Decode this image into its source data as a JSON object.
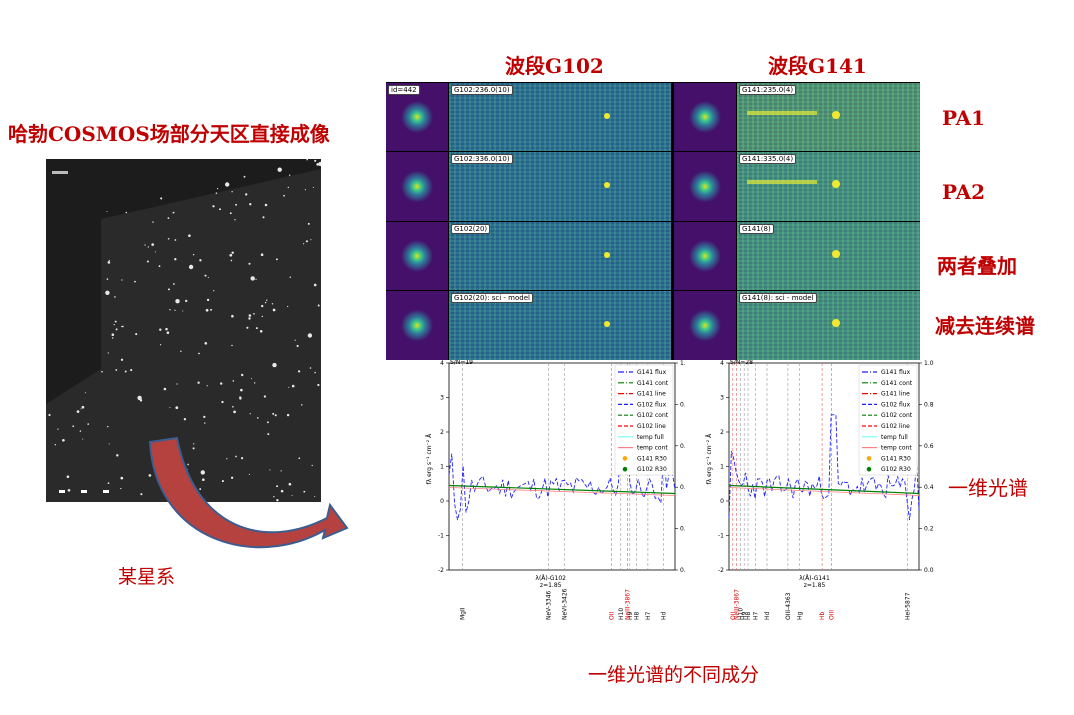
{
  "labels": {
    "left_title": "哈勃COSMOS场部分天区直接成像",
    "g102_header": "波段G102",
    "g141_header": "波段G141",
    "row_pa1": "PA1",
    "row_pa2": "PA2",
    "row_sum": "两者叠加",
    "row_sub": "减去连续谱",
    "spec1d": "一维光谱",
    "galaxy": "某星系",
    "bottom": "一维光谱的不同成分"
  },
  "thumbs": {
    "id_label": "id=442",
    "g102": [
      "G102:236.0(10)",
      "G102:336.0(10)",
      "G102(20)",
      "G102(20): sci - model"
    ],
    "g141": [
      "G141:235.0(4)",
      "G141:335.0(4)",
      "G141(8)",
      "G141(8): sci - model"
    ]
  },
  "plots": {
    "left": {
      "xlabel": "λ(Å)-G102",
      "z": "z=1.85",
      "sn": "S/N=19",
      "ylabel": "fλ erg s⁻¹ cm⁻² Å",
      "yticks": [
        "4",
        "3",
        "2",
        "1",
        "0",
        "-1",
        "-2"
      ],
      "y2ticks": [
        "1.0",
        "0.8",
        "0.6",
        "0.4",
        "0.2",
        "0.0"
      ],
      "lines_black": [
        "MgII",
        "NeV-3346",
        "NeVI-3426",
        "H10",
        "H9",
        "H8",
        "H7",
        "Hd"
      ],
      "lines_red": [
        "OII",
        "NeIII-3867"
      ]
    },
    "right": {
      "xlabel": "λ(Å)-G141",
      "z": "z=1.85",
      "sn": "S/N=28",
      "ylabel": "fλ erg s⁻¹ cm⁻² Å",
      "yticks": [
        "4",
        "3",
        "2",
        "1",
        "0",
        "-1",
        "-2"
      ],
      "y2ticks": [
        "1.0",
        "0.8",
        "0.6",
        "0.4",
        "0.2",
        "0.0"
      ],
      "lines_black": [
        "H10",
        "H9",
        "H8",
        "H7",
        "Hd",
        "OIII-4363",
        "Hg",
        "HeI-5877"
      ],
      "lines_red": [
        "OII",
        "NeIII-3867",
        "Hb",
        "OIII"
      ]
    },
    "legend": [
      {
        "label": "G141 flux",
        "color": "#1f1fff",
        "dash": "6,2,1,2"
      },
      {
        "label": "G141 cont",
        "color": "#008000",
        "dash": "6,2,1,2"
      },
      {
        "label": "G141 line",
        "color": "#ff0000",
        "dash": "6,2,1,2"
      },
      {
        "label": "G102 flux",
        "color": "#1f1fff",
        "dash": "4,2"
      },
      {
        "label": "G102 cont",
        "color": "#008000",
        "dash": "4,2"
      },
      {
        "label": "G102 line",
        "color": "#ff0000",
        "dash": "4,2"
      },
      {
        "label": "temp full",
        "color": "#7fffff",
        "dash": ""
      },
      {
        "label": "temp cont",
        "color": "#ff7f7f",
        "dash": ""
      },
      {
        "label": "G141 R30",
        "color": "#ffa500",
        "dash": "dot"
      },
      {
        "label": "G102 R30",
        "color": "#008000",
        "dash": "dot"
      }
    ]
  },
  "colors": {
    "accent_red": "#c00000",
    "field_bg": "#1a1a1a",
    "grism_bg": "#2a6e96",
    "thumb_bg": "#44106a"
  }
}
